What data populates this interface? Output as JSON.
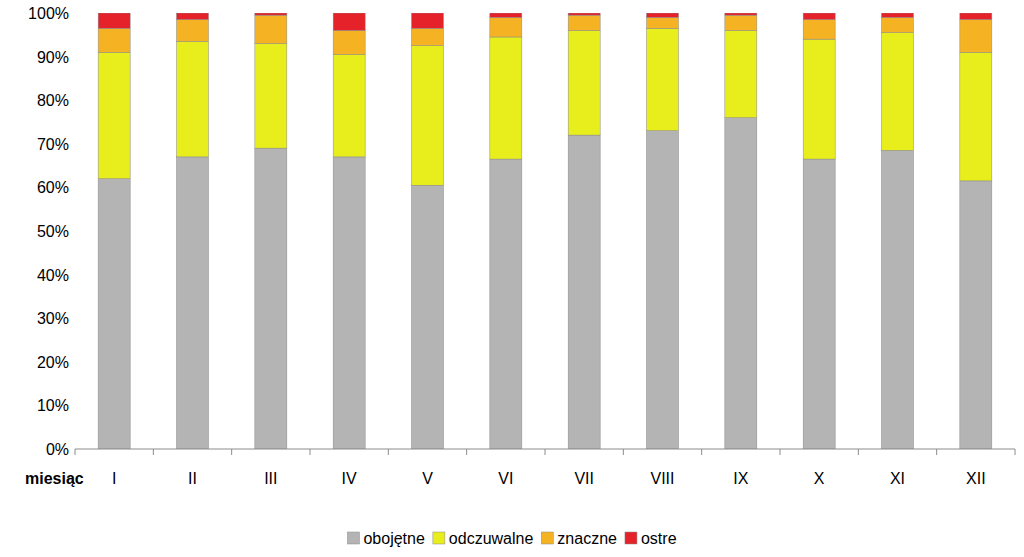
{
  "chart_data": {
    "type": "bar",
    "stacked": true,
    "grid": false,
    "legend": "bottom",
    "x_label": "miesiąc",
    "categories": [
      "I",
      "II",
      "III",
      "IV",
      "V",
      "VI",
      "VII",
      "VIII",
      "IX",
      "X",
      "XI",
      "XII"
    ],
    "series": [
      {
        "name": "obojętne",
        "color": "#b4b4b4",
        "values": [
          62,
          67,
          69,
          67,
          60.5,
          66.5,
          72,
          73,
          76,
          66.5,
          68.5,
          61.5
        ]
      },
      {
        "name": "odczuwalne",
        "color": "#e8ee1c",
        "values": [
          29,
          26.5,
          24,
          23.5,
          32,
          28,
          24,
          23.5,
          20,
          27.5,
          27,
          29.5
        ]
      },
      {
        "name": "znaczne",
        "color": "#f5b324",
        "values": [
          5.5,
          5,
          6.5,
          5.5,
          4,
          4.5,
          3.5,
          2.5,
          3.5,
          4.5,
          3.5,
          7.5
        ]
      },
      {
        "name": "ostre",
        "color": "#e52129",
        "values": [
          3.5,
          1.5,
          0.5,
          4,
          3.5,
          1,
          0.5,
          1,
          0.5,
          1.5,
          1,
          1.5
        ]
      }
    ],
    "ylim": [
      0,
      100
    ],
    "yticks": [
      {
        "value": 0,
        "label": "0%"
      },
      {
        "value": 10,
        "label": "10%"
      },
      {
        "value": 20,
        "label": "20%"
      },
      {
        "value": 30,
        "label": "30%"
      },
      {
        "value": 40,
        "label": "40%"
      },
      {
        "value": 50,
        "label": "50%"
      },
      {
        "value": 60,
        "label": "60%"
      },
      {
        "value": 70,
        "label": "70%"
      },
      {
        "value": 80,
        "label": "80%"
      },
      {
        "value": 90,
        "label": "90%"
      },
      {
        "value": {
          "value": 100,
          "label": "100%"
        },
        "label": "100%"
      }
    ]
  }
}
